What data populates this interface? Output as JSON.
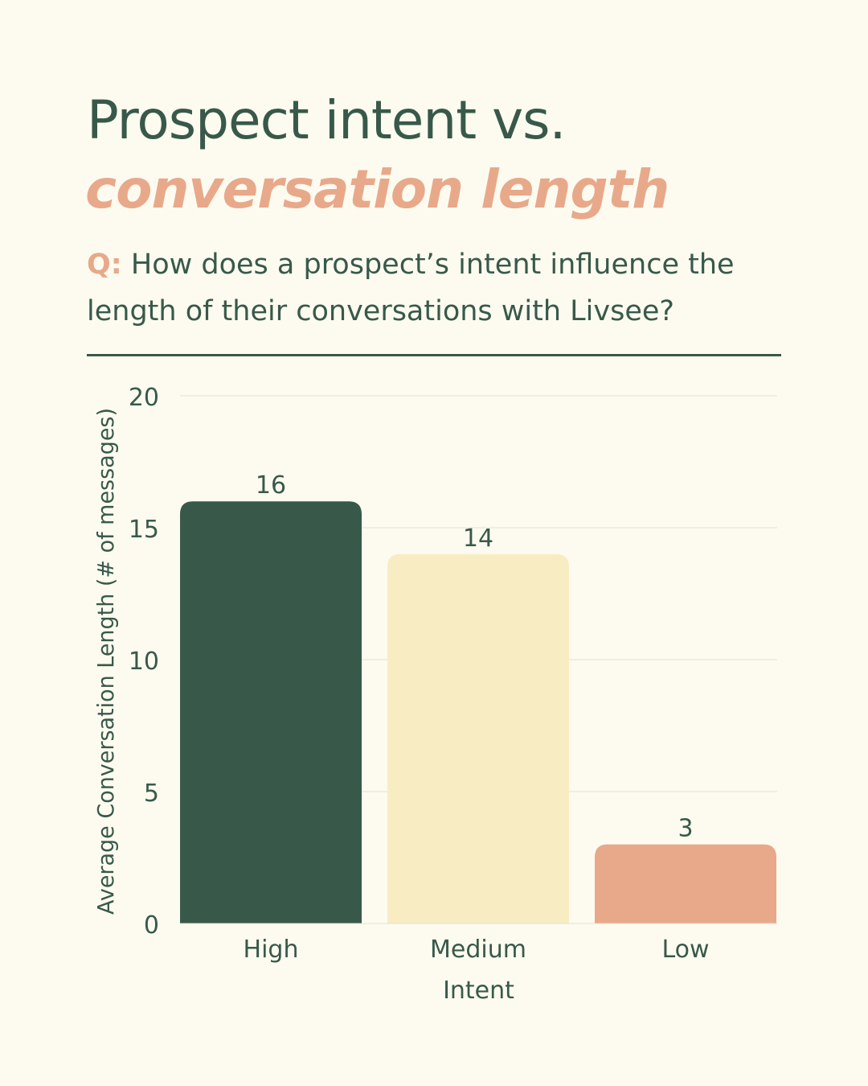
{
  "header": {
    "title_line1": "Prospect intent vs.",
    "title_line2": "conversation length",
    "question_prefix": "Q:",
    "question_text": "How does a prospect’s intent influence the length of their conversations with Livsee?"
  },
  "colors": {
    "background": "#fdfbf0",
    "primary": "#38594a",
    "accent": "#e8a98a",
    "medium": "#f8edc2",
    "grid": "#e2e0d2"
  },
  "chart_data": {
    "type": "bar",
    "title": "",
    "categories": [
      "High",
      "Medium",
      "Low"
    ],
    "values": [
      16,
      14,
      3
    ],
    "bar_colors": [
      "#38594a",
      "#f8edc2",
      "#e8a98a"
    ],
    "data_labels": [
      "16",
      "14",
      "3"
    ],
    "xlabel": "Intent",
    "ylabel": "Average Conversation Length (# of messages)",
    "ylim": [
      0,
      20
    ],
    "yticks": [
      0,
      5,
      10,
      15,
      20
    ],
    "grid": true,
    "legend": "none"
  }
}
